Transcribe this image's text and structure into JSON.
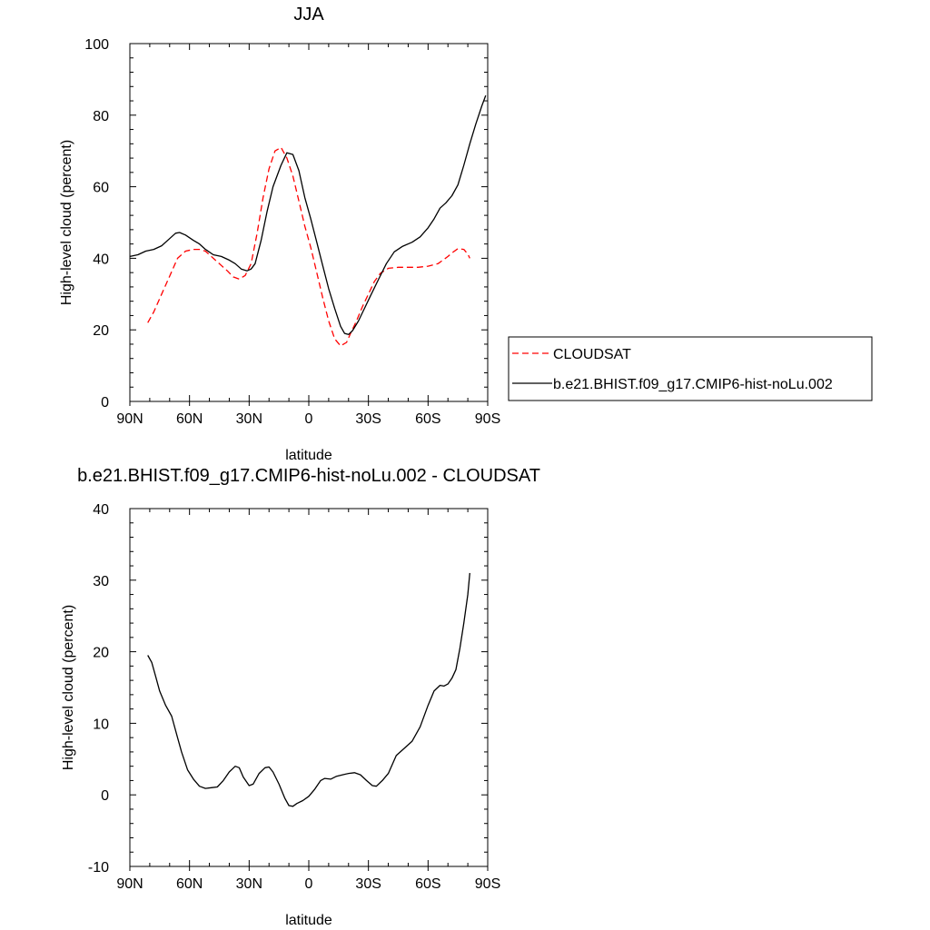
{
  "chart_data": [
    {
      "type": "line",
      "title": "JJA",
      "xlabel": "latitude",
      "ylabel": "High-level cloud (percent)",
      "xlim": [
        90,
        -90
      ],
      "ylim": [
        0,
        100
      ],
      "x_ticks": [
        90,
        60,
        30,
        0,
        -30,
        -60,
        -90
      ],
      "x_tick_labels": [
        "90N",
        "60N",
        "30N",
        "0",
        "30S",
        "60S",
        "90S"
      ],
      "y_ticks": [
        0,
        20,
        40,
        60,
        80,
        100
      ],
      "y_tick_labels": [
        "0",
        "20",
        "40",
        "60",
        "80",
        "100"
      ],
      "grid": false,
      "legend": "right",
      "series": [
        {
          "name": "CLOUDSAT",
          "color": "#ff0000",
          "dash": "dashed",
          "x": [
            81,
            78,
            74,
            70,
            66,
            62,
            58,
            55,
            52,
            48,
            44,
            41,
            38,
            35,
            32,
            29,
            26,
            23,
            20,
            17,
            14,
            11,
            8,
            5,
            2,
            -1,
            -4,
            -7,
            -10,
            -13,
            -16,
            -19,
            -21,
            -24,
            -27,
            -30,
            -33,
            -36,
            -40,
            -45,
            -50,
            -55,
            -60,
            -65,
            -70,
            -72,
            -75,
            -78,
            -80,
            -81
          ],
          "y": [
            22,
            25,
            30,
            35,
            40,
            42,
            42.5,
            42.5,
            42,
            40,
            38,
            36.5,
            34.8,
            34.2,
            35.2,
            38.5,
            47,
            57,
            65,
            70,
            71,
            68,
            63,
            56,
            49,
            43,
            36,
            29,
            22.5,
            17.5,
            15.5,
            16.5,
            19,
            22.5,
            26.5,
            30,
            33.5,
            35.8,
            37.2,
            37.5,
            37.5,
            37.5,
            37.8,
            38.5,
            40.5,
            41.5,
            42.7,
            42.5,
            41.2,
            40
          ]
        },
        {
          "name": "b.e21.BHIST.f09_g17.CMIP6-hist-noLu.002",
          "color": "#000000",
          "dash": "solid",
          "x": [
            90,
            86,
            82,
            78,
            74,
            70,
            67,
            65,
            62,
            58,
            55,
            52,
            48,
            44,
            40,
            37,
            34,
            31,
            29,
            27,
            24,
            21,
            18,
            14,
            11,
            8,
            5,
            2,
            -1,
            -4,
            -7,
            -10,
            -13,
            -16,
            -18,
            -20,
            -22,
            -25,
            -28,
            -31,
            -35,
            -39,
            -43,
            -47,
            -52,
            -56,
            -60,
            -63,
            -66,
            -69,
            -72,
            -75,
            -78,
            -81,
            -84,
            -87,
            -89
          ],
          "y": [
            40.5,
            41,
            42,
            42.5,
            43.5,
            45.5,
            47,
            47.2,
            46.5,
            45,
            44,
            42.5,
            41,
            40.5,
            39.5,
            38.5,
            37,
            36.5,
            37,
            38.5,
            45,
            53,
            60,
            66,
            69.5,
            69,
            64.5,
            57,
            51,
            44.5,
            38,
            31.5,
            26,
            21,
            19,
            18.7,
            19.8,
            22.5,
            26,
            29.5,
            34,
            38.5,
            41.8,
            43.3,
            44.5,
            46,
            48.5,
            51,
            54,
            55.5,
            57.5,
            60.5,
            66,
            72,
            77.5,
            82.5,
            85.5
          ]
        }
      ]
    },
    {
      "type": "line",
      "title": "b.e21.BHIST.f09_g17.CMIP6-hist-noLu.002 - CLOUDSAT",
      "xlabel": "latitude",
      "ylabel": "High-level cloud (percent)",
      "xlim": [
        90,
        -90
      ],
      "ylim": [
        -10,
        40
      ],
      "x_ticks": [
        90,
        60,
        30,
        0,
        -30,
        -60,
        -90
      ],
      "x_tick_labels": [
        "90N",
        "60N",
        "30N",
        "0",
        "30S",
        "60S",
        "90S"
      ],
      "y_ticks": [
        -10,
        0,
        10,
        20,
        30,
        40
      ],
      "y_tick_labels": [
        "-10",
        "0",
        "10",
        "20",
        "30",
        "40"
      ],
      "grid": false,
      "series": [
        {
          "color": "#000000",
          "dash": "solid",
          "x": [
            81,
            79,
            77,
            75,
            72,
            69,
            66,
            64,
            61,
            58,
            55,
            52,
            49,
            46,
            43,
            40,
            37,
            35,
            33,
            30,
            28,
            25,
            22,
            20,
            18,
            15,
            12,
            10,
            8,
            6,
            3,
            0,
            -3,
            -6,
            -8,
            -11,
            -14,
            -17,
            -20,
            -23,
            -26,
            -29,
            -32,
            -34,
            -37,
            -40,
            -44,
            -48,
            -52,
            -56,
            -60,
            -63,
            -66,
            -68,
            -70,
            -72,
            -74,
            -76,
            -78,
            -80,
            -81
          ],
          "y": [
            19.5,
            18.5,
            16.5,
            14.5,
            12.5,
            11,
            8,
            6,
            3.5,
            2.2,
            1.2,
            0.9,
            1,
            1.1,
            2,
            3.2,
            4,
            3.8,
            2.5,
            1.3,
            1.5,
            3,
            3.8,
            3.9,
            3.2,
            1.5,
            -0.5,
            -1.5,
            -1.6,
            -1.2,
            -0.8,
            -0.2,
            0.8,
            2,
            2.3,
            2.2,
            2.6,
            2.8,
            3,
            3.1,
            2.8,
            2,
            1.3,
            1.2,
            2,
            3,
            5.5,
            6.5,
            7.5,
            9.5,
            12.5,
            14.5,
            15.3,
            15.2,
            15.5,
            16.3,
            17.5,
            20.5,
            24,
            28,
            31
          ]
        }
      ]
    }
  ]
}
